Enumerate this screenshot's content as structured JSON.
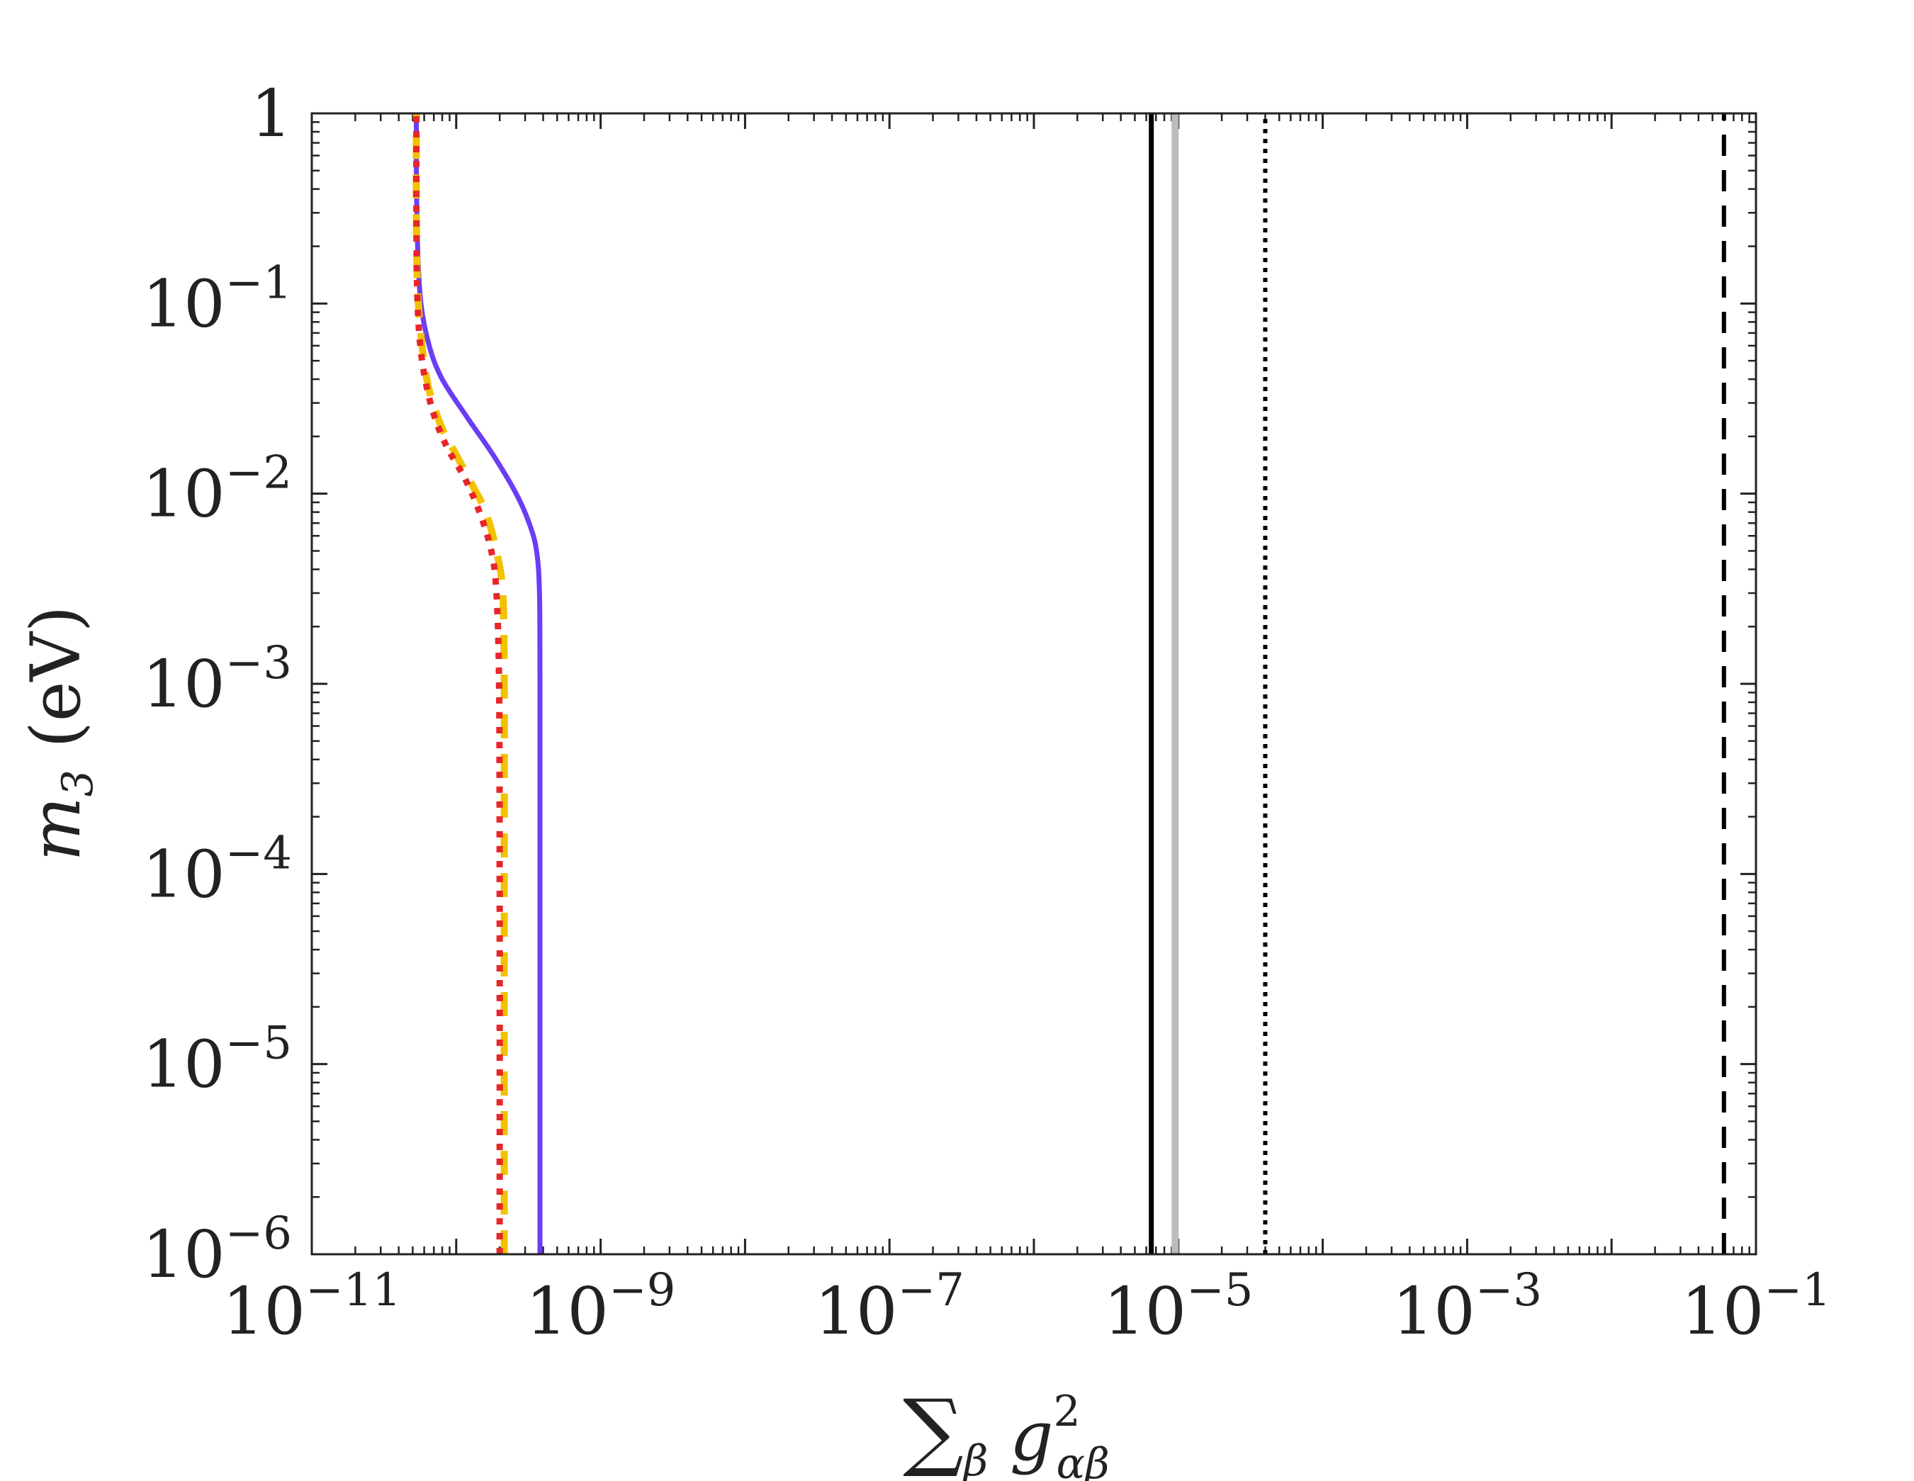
{
  "chart_data": {
    "type": "line",
    "x_scale": "log",
    "y_scale": "log",
    "xlim": [
      1e-11,
      0.1
    ],
    "ylim": [
      1e-06,
      1
    ],
    "xlabel": "∑_β g²_αβ",
    "ylabel": "m_3 (eV)",
    "x_ticks": [
      {
        "value": 1e-11,
        "base": "10",
        "exp": "−11"
      },
      {
        "value": 1e-09,
        "base": "10",
        "exp": "−9"
      },
      {
        "value": 1e-07,
        "base": "10",
        "exp": "−7"
      },
      {
        "value": 1e-05,
        "base": "10",
        "exp": "−5"
      },
      {
        "value": 0.001,
        "base": "10",
        "exp": "−3"
      },
      {
        "value": 0.1,
        "base": "10",
        "exp": "−1"
      }
    ],
    "y_ticks": [
      {
        "value": 1,
        "base": "1",
        "exp": ""
      },
      {
        "value": 0.1,
        "base": "10",
        "exp": "−1"
      },
      {
        "value": 0.01,
        "base": "10",
        "exp": "−2"
      },
      {
        "value": 0.001,
        "base": "10",
        "exp": "−3"
      },
      {
        "value": 0.0001,
        "base": "10",
        "exp": "−4"
      },
      {
        "value": 1e-05,
        "base": "10",
        "exp": "−5"
      },
      {
        "value": 1e-06,
        "base": "10",
        "exp": "−6"
      }
    ],
    "series": [
      {
        "style": "solid",
        "color": "#6b3df5",
        "points": [
          [
            3.8e-10,
            1e-06
          ],
          [
            3.8e-10,
            0.0001
          ],
          [
            3.8e-10,
            0.001
          ],
          [
            3.77e-10,
            0.003
          ],
          [
            3.6e-10,
            0.005
          ],
          [
            3.2e-10,
            0.007
          ],
          [
            2.6e-10,
            0.01
          ],
          [
            1.8e-10,
            0.016
          ],
          [
            1.2e-10,
            0.025
          ],
          [
            8e-11,
            0.04
          ],
          [
            6.5e-11,
            0.06
          ],
          [
            5.7e-11,
            0.1
          ],
          [
            5.4e-11,
            0.2
          ],
          [
            5.3e-11,
            0.5
          ],
          [
            5.3e-11,
            1
          ]
        ]
      },
      {
        "style": "dashed",
        "color": "#f2c200",
        "points": [
          [
            2.15e-10,
            1e-06
          ],
          [
            2.15e-10,
            0.0001
          ],
          [
            2.15e-10,
            0.001
          ],
          [
            2.1e-10,
            0.003
          ],
          [
            1.9e-10,
            0.005
          ],
          [
            1.6e-10,
            0.008
          ],
          [
            1.3e-10,
            0.011
          ],
          [
            1e-10,
            0.016
          ],
          [
            8e-11,
            0.022
          ],
          [
            6.5e-11,
            0.035
          ],
          [
            5.8e-11,
            0.06
          ],
          [
            5.4e-11,
            0.12
          ],
          [
            5.3e-11,
            0.3
          ],
          [
            5.3e-11,
            1
          ]
        ]
      },
      {
        "style": "dotted",
        "color": "#e8262a",
        "points": [
          [
            2e-10,
            1e-06
          ],
          [
            2e-10,
            0.0001
          ],
          [
            1.98e-10,
            0.001
          ],
          [
            1.9e-10,
            0.003
          ],
          [
            1.75e-10,
            0.005
          ],
          [
            1.45e-10,
            0.008
          ],
          [
            1.15e-10,
            0.012
          ],
          [
            8.5e-11,
            0.018
          ],
          [
            6.8e-11,
            0.028
          ],
          [
            5.8e-11,
            0.05
          ],
          [
            5.4e-11,
            0.1
          ],
          [
            5.3e-11,
            0.3
          ],
          [
            5.3e-11,
            1
          ]
        ]
      },
      {
        "style": "solid",
        "color": "#000000",
        "points": [
          [
            6.5e-06,
            1e-06
          ],
          [
            6.5e-06,
            1
          ]
        ]
      },
      {
        "style": "solid",
        "color": "#bbbbbb",
        "points": [
          [
            9.5e-06,
            1e-06
          ],
          [
            9.5e-06,
            1
          ]
        ]
      },
      {
        "style": "dotted",
        "color": "#000000",
        "points": [
          [
            4e-05,
            1e-06
          ],
          [
            4e-05,
            1
          ]
        ]
      },
      {
        "style": "dashed",
        "color": "#000000",
        "points": [
          [
            0.06,
            1e-06
          ],
          [
            0.06,
            1
          ]
        ]
      }
    ]
  }
}
